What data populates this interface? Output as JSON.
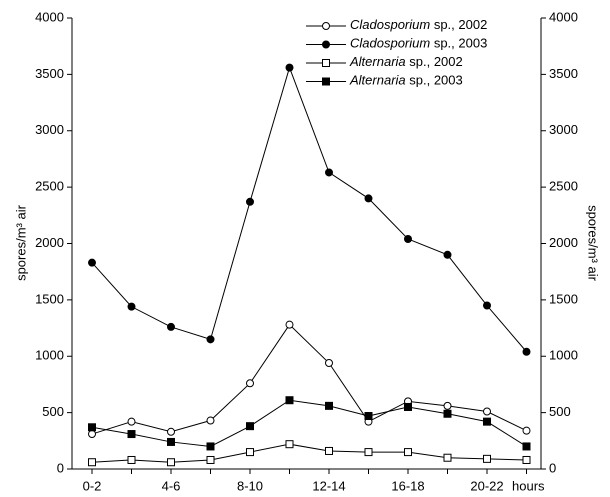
{
  "chart_data": {
    "type": "line",
    "categories": [
      "0-2",
      null,
      "4-6",
      null,
      "8-10",
      null,
      "12-14",
      null,
      "16-18",
      null,
      "20-22",
      null
    ],
    "x_label": "hours",
    "y_label": "spores/m³ air",
    "y2_label": "spores/m³ air",
    "ylim": [
      0,
      4000
    ],
    "yticks": [
      0,
      500,
      1000,
      1500,
      2000,
      2500,
      3000,
      3500,
      4000
    ],
    "y2lim": [
      0,
      4000
    ],
    "y2ticks": [
      0,
      500,
      1000,
      1500,
      2000,
      2500,
      3000,
      3500,
      4000
    ],
    "legend": "top-right",
    "series": [
      {
        "name": "Cladosporium sp., 2002",
        "color": "#000000",
        "marker": "circle-open",
        "values": [
          310,
          420,
          330,
          430,
          760,
          1280,
          940,
          420,
          600,
          560,
          510,
          340
        ]
      },
      {
        "name": "Cladosporium sp., 2003",
        "color": "#000000",
        "marker": "circle-filled",
        "values": [
          1830,
          1440,
          1260,
          1150,
          2370,
          3560,
          2630,
          2400,
          2040,
          1900,
          1450,
          1040
        ]
      },
      {
        "name": "Alternaria sp., 2002",
        "color": "#000000",
        "marker": "square-open",
        "values": [
          60,
          80,
          60,
          80,
          150,
          220,
          160,
          150,
          150,
          100,
          90,
          80
        ]
      },
      {
        "name": "Alternaria sp., 2003",
        "color": "#000000",
        "marker": "square-filled",
        "values": [
          370,
          310,
          240,
          200,
          380,
          610,
          560,
          470,
          550,
          490,
          420,
          200
        ]
      }
    ]
  }
}
